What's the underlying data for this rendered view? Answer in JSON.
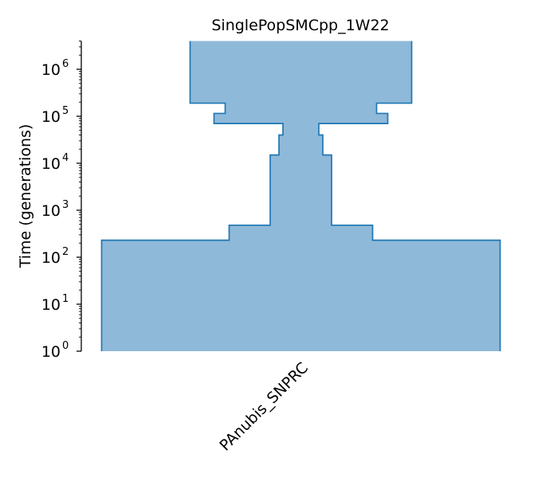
{
  "colors": {
    "fill": "#8fb9d9",
    "stroke": "#1f77b4",
    "axis": "#000000"
  },
  "chart_data": {
    "type": "area",
    "title": "SinglePopSMCpp_1W22",
    "ylabel": "Time (generations)",
    "xlabel": "",
    "y_scale": "log",
    "ylim": [
      1,
      4000000
    ],
    "y_ticks": [
      {
        "value": 1,
        "base": "10",
        "exp": "0"
      },
      {
        "value": 10,
        "base": "10",
        "exp": "1"
      },
      {
        "value": 100,
        "base": "10",
        "exp": "2"
      },
      {
        "value": 1000,
        "base": "10",
        "exp": "3"
      },
      {
        "value": 10000,
        "base": "10",
        "exp": "4"
      },
      {
        "value": 100000,
        "base": "10",
        "exp": "5"
      },
      {
        "value": 1000000,
        "base": "10",
        "exp": "6"
      }
    ],
    "grid": false,
    "populations": [
      {
        "name": "PAnubis_SNPRC",
        "epochs": [
          {
            "start_time": 1,
            "end_time": 230,
            "relative_width": 1.0
          },
          {
            "start_time": 230,
            "end_time": 480,
            "relative_width": 0.36
          },
          {
            "start_time": 480,
            "end_time": 15000,
            "relative_width": 0.154
          },
          {
            "start_time": 15000,
            "end_time": 40000,
            "relative_width": 0.11
          },
          {
            "start_time": 40000,
            "end_time": 70000,
            "relative_width": 0.09
          },
          {
            "start_time": 70000,
            "end_time": 115000,
            "relative_width": 0.436
          },
          {
            "start_time": 115000,
            "end_time": 190000,
            "relative_width": 0.38
          },
          {
            "start_time": 190000,
            "end_time": 4000000,
            "relative_width": 0.556
          }
        ]
      }
    ]
  }
}
